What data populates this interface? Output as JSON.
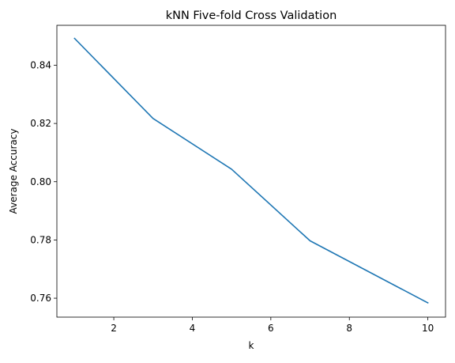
{
  "chart_data": {
    "type": "line",
    "title": "kNN Five-fold Cross Validation",
    "xlabel": "k",
    "ylabel": "Average Accuracy",
    "xlim": [
      0.55,
      10.45
    ],
    "ylim": [
      0.7535,
      0.8537
    ],
    "xticks": [
      2,
      4,
      6,
      8,
      10
    ],
    "xtick_labels": [
      "2",
      "4",
      "6",
      "8",
      "10"
    ],
    "yticks": [
      0.76,
      0.78,
      0.8,
      0.82,
      0.84
    ],
    "ytick_labels": [
      "0.76",
      "0.78",
      "0.80",
      "0.82",
      "0.84"
    ],
    "grid": false,
    "series": [
      {
        "color": "#1f77b4",
        "x": [
          1,
          3,
          5,
          7,
          10
        ],
        "y": [
          0.8492,
          0.8217,
          0.8043,
          0.7797,
          0.7584
        ]
      }
    ]
  }
}
